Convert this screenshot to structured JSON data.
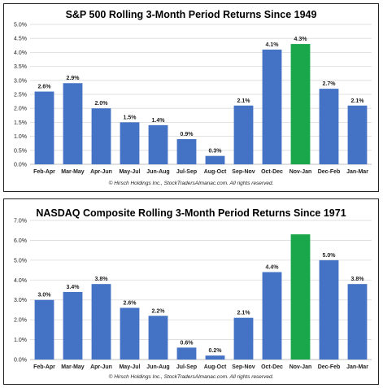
{
  "chart_data": [
    {
      "type": "bar",
      "title": "S&P 500 Rolling 3-Month Period Returns Since 1949",
      "categories": [
        "Feb-Apr",
        "Mar-May",
        "Apr-Jun",
        "May-Jul",
        "Jun-Aug",
        "Jul-Sep",
        "Aug-Oct",
        "Sep-Nov",
        "Oct-Dec",
        "Nov-Jan",
        "Dec-Feb",
        "Jan-Mar"
      ],
      "values": [
        2.6,
        2.9,
        2.0,
        1.5,
        1.4,
        0.9,
        0.3,
        2.1,
        4.1,
        4.3,
        2.7,
        2.1
      ],
      "labels": [
        "2.6%",
        "2.9%",
        "2.0%",
        "1.5%",
        "1.4%",
        "0.9%",
        "0.3%",
        "2.1%",
        "4.1%",
        "4.3%",
        "2.7%",
        "2.1%"
      ],
      "highlight_index": 9,
      "ylim": [
        0,
        5
      ],
      "yticks": [
        "0.0%",
        "0.5%",
        "1.0%",
        "1.5%",
        "2.0%",
        "2.5%",
        "3.0%",
        "3.5%",
        "4.0%",
        "4.5%",
        "5.0%"
      ],
      "xlabel": "",
      "ylabel": "",
      "grid": true,
      "credit": "© Hirsch Holdings Inc., StockTradersAlmanac.com. All rights reserved."
    },
    {
      "type": "bar",
      "title": "NASDAQ Composite Rolling 3-Month Period Returns Since 1971",
      "categories": [
        "Feb-Apr",
        "Mar-May",
        "Apr-Jun",
        "May-Jul",
        "Jun-Aug",
        "Jul-Sep",
        "Aug-Oct",
        "Sep-Nov",
        "Oct-Dec",
        "Nov-Jan",
        "Dec-Feb",
        "Jan-Mar"
      ],
      "values": [
        3.0,
        3.4,
        3.8,
        2.6,
        2.2,
        0.6,
        0.2,
        2.1,
        4.4,
        6.3,
        5.0,
        3.8
      ],
      "labels": [
        "3.0%",
        "3.4%",
        "3.8%",
        "2.6%",
        "2.2%",
        "0.6%",
        "0.2%",
        "2.1%",
        "4.4%",
        "",
        "5.0%",
        "3.8%"
      ],
      "highlight_index": 9,
      "ylim": [
        0,
        7
      ],
      "yticks": [
        "0.0%",
        "1.0%",
        "2.0%",
        "3.0%",
        "4.0%",
        "5.0%",
        "6.0%",
        "7.0%"
      ],
      "xlabel": "",
      "ylabel": "",
      "grid": true,
      "credit": "© Hirsch Holdings Inc., StockTradersAlmanac.com. All rights reserved."
    }
  ],
  "colors": {
    "bar": "#4472c4",
    "highlight": "#1aa64a"
  }
}
